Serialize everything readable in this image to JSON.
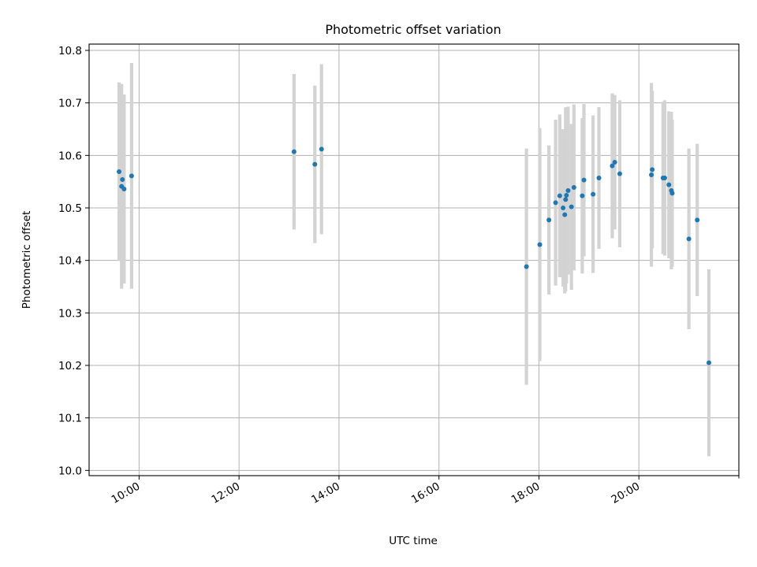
{
  "chart_data": {
    "type": "scatter",
    "title": "Photometric offset variation",
    "xlabel": "UTC time",
    "ylabel": "Photometric offset",
    "xlim": [
      "09:00",
      "22:00"
    ],
    "ylim": [
      9.99,
      10.812
    ],
    "xticks": [
      "10:00",
      "12:00",
      "14:00",
      "16:00",
      "18:00",
      "20:00"
    ],
    "yticks": [
      "10.0",
      "10.1",
      "10.2",
      "10.3",
      "10.4",
      "10.5",
      "10.6",
      "10.7",
      "10.8"
    ],
    "grid": true,
    "colors": {
      "points": "#1f77b4",
      "errorbars": "#d3d3d3",
      "grid": "#b0b0b0"
    },
    "series": [
      {
        "points": [
          {
            "x": "09:36",
            "y": 10.569,
            "yerr": 0.17
          },
          {
            "x": "09:39",
            "y": 10.541,
            "yerr": 0.195
          },
          {
            "x": "09:40",
            "y": 10.554,
            "yerr": 0.16
          },
          {
            "x": "09:42",
            "y": 10.536,
            "yerr": 0.18
          },
          {
            "x": "09:51",
            "y": 10.561,
            "yerr": 0.215
          },
          {
            "x": "13:06",
            "y": 10.607,
            "yerr": 0.148
          },
          {
            "x": "13:31",
            "y": 10.583,
            "yerr": 0.15
          },
          {
            "x": "13:39",
            "y": 10.612,
            "yerr": 0.162
          },
          {
            "x": "17:45",
            "y": 10.388,
            "yerr": 0.225
          },
          {
            "x": "18:01",
            "y": 10.43,
            "yerr": 0.222
          },
          {
            "x": "18:12",
            "y": 10.477,
            "yerr": 0.142
          },
          {
            "x": "18:20",
            "y": 10.51,
            "yerr": 0.158
          },
          {
            "x": "18:25",
            "y": 10.523,
            "yerr": 0.155
          },
          {
            "x": "18:29",
            "y": 10.5,
            "yerr": 0.15
          },
          {
            "x": "18:31",
            "y": 10.487,
            "yerr": 0.15
          },
          {
            "x": "18:32",
            "y": 10.516,
            "yerr": 0.175
          },
          {
            "x": "18:33",
            "y": 10.524,
            "yerr": 0.168
          },
          {
            "x": "18:35",
            "y": 10.533,
            "yerr": 0.16
          },
          {
            "x": "18:39",
            "y": 10.502,
            "yerr": 0.158
          },
          {
            "x": "18:42",
            "y": 10.539,
            "yerr": 0.158
          },
          {
            "x": "18:52",
            "y": 10.523,
            "yerr": 0.148
          },
          {
            "x": "18:54",
            "y": 10.553,
            "yerr": 0.145
          },
          {
            "x": "19:05",
            "y": 10.526,
            "yerr": 0.15
          },
          {
            "x": "19:12",
            "y": 10.557,
            "yerr": 0.135
          },
          {
            "x": "19:28",
            "y": 10.58,
            "yerr": 0.138
          },
          {
            "x": "19:31",
            "y": 10.587,
            "yerr": 0.128
          },
          {
            "x": "19:37",
            "y": 10.565,
            "yerr": 0.14
          },
          {
            "x": "20:15",
            "y": 10.563,
            "yerr": 0.175
          },
          {
            "x": "20:16",
            "y": 10.573,
            "yerr": 0.15
          },
          {
            "x": "20:29",
            "y": 10.557,
            "yerr": 0.145
          },
          {
            "x": "20:31",
            "y": 10.557,
            "yerr": 0.148
          },
          {
            "x": "20:36",
            "y": 10.544,
            "yerr": 0.14
          },
          {
            "x": "20:39",
            "y": 10.533,
            "yerr": 0.15
          },
          {
            "x": "20:40",
            "y": 10.528,
            "yerr": 0.14
          },
          {
            "x": "21:00",
            "y": 10.441,
            "yerr": 0.172
          },
          {
            "x": "21:10",
            "y": 10.477,
            "yerr": 0.145
          },
          {
            "x": "21:24",
            "y": 10.205,
            "yerr": 0.178
          }
        ]
      }
    ]
  }
}
